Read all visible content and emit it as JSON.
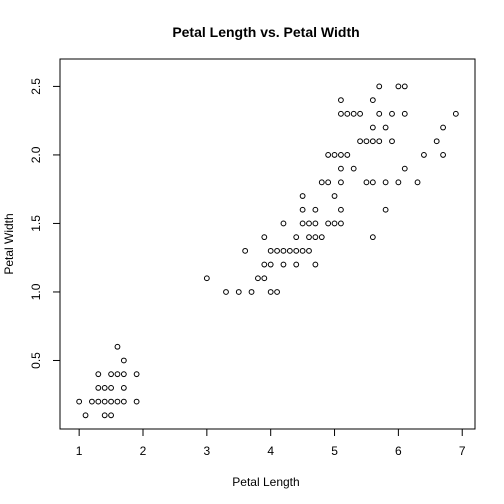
{
  "chart_data": {
    "type": "scatter",
    "title": "Petal Length vs. Petal Width",
    "xlabel": "Petal Length",
    "ylabel": "Petal Width",
    "xlim": [
      0.7,
      7.2
    ],
    "ylim": [
      0.0,
      2.7
    ],
    "x_ticks": [
      1,
      2,
      3,
      4,
      5,
      6,
      7
    ],
    "x_tick_labels": [
      "1",
      "2",
      "3",
      "4",
      "5",
      "6",
      "7"
    ],
    "y_ticks": [
      0.5,
      1.0,
      1.5,
      2.0,
      2.5
    ],
    "y_tick_labels": [
      "0.5",
      "1.0",
      "1.5",
      "2.0",
      "2.5"
    ],
    "grid": false,
    "legend": false,
    "marker": "open-circle",
    "colors": {
      "points": "#000000",
      "axes": "#000000",
      "background": "#ffffff"
    },
    "series": [
      {
        "points": [
          [
            1.0,
            0.2
          ],
          [
            1.1,
            0.1
          ],
          [
            1.2,
            0.2
          ],
          [
            1.3,
            0.2
          ],
          [
            1.3,
            0.3
          ],
          [
            1.3,
            0.4
          ],
          [
            1.4,
            0.1
          ],
          [
            1.4,
            0.2
          ],
          [
            1.4,
            0.3
          ],
          [
            1.5,
            0.1
          ],
          [
            1.5,
            0.2
          ],
          [
            1.5,
            0.3
          ],
          [
            1.5,
            0.4
          ],
          [
            1.6,
            0.2
          ],
          [
            1.6,
            0.4
          ],
          [
            1.6,
            0.6
          ],
          [
            1.7,
            0.2
          ],
          [
            1.7,
            0.3
          ],
          [
            1.7,
            0.4
          ],
          [
            1.7,
            0.5
          ],
          [
            1.9,
            0.2
          ],
          [
            1.9,
            0.4
          ],
          [
            3.0,
            1.1
          ],
          [
            3.3,
            1.0
          ],
          [
            3.5,
            1.0
          ],
          [
            3.6,
            1.3
          ],
          [
            3.7,
            1.0
          ],
          [
            3.8,
            1.1
          ],
          [
            3.9,
            1.1
          ],
          [
            3.9,
            1.2
          ],
          [
            3.9,
            1.4
          ],
          [
            4.0,
            1.0
          ],
          [
            4.0,
            1.2
          ],
          [
            4.0,
            1.3
          ],
          [
            4.1,
            1.0
          ],
          [
            4.1,
            1.3
          ],
          [
            4.2,
            1.2
          ],
          [
            4.2,
            1.3
          ],
          [
            4.2,
            1.5
          ],
          [
            4.3,
            1.3
          ],
          [
            4.4,
            1.2
          ],
          [
            4.4,
            1.3
          ],
          [
            4.4,
            1.4
          ],
          [
            4.5,
            1.3
          ],
          [
            4.5,
            1.5
          ],
          [
            4.5,
            1.6
          ],
          [
            4.5,
            1.7
          ],
          [
            4.6,
            1.3
          ],
          [
            4.6,
            1.4
          ],
          [
            4.6,
            1.5
          ],
          [
            4.7,
            1.2
          ],
          [
            4.7,
            1.4
          ],
          [
            4.7,
            1.5
          ],
          [
            4.7,
            1.6
          ],
          [
            4.8,
            1.4
          ],
          [
            4.8,
            1.8
          ],
          [
            4.9,
            1.5
          ],
          [
            4.9,
            1.8
          ],
          [
            4.9,
            2.0
          ],
          [
            5.0,
            1.5
          ],
          [
            5.0,
            1.7
          ],
          [
            5.0,
            2.0
          ],
          [
            5.1,
            1.5
          ],
          [
            5.1,
            1.6
          ],
          [
            5.1,
            1.8
          ],
          [
            5.1,
            1.9
          ],
          [
            5.1,
            2.0
          ],
          [
            5.1,
            2.3
          ],
          [
            5.1,
            2.4
          ],
          [
            5.2,
            2.0
          ],
          [
            5.2,
            2.3
          ],
          [
            5.3,
            1.9
          ],
          [
            5.3,
            2.3
          ],
          [
            5.4,
            2.1
          ],
          [
            5.4,
            2.3
          ],
          [
            5.5,
            1.8
          ],
          [
            5.5,
            2.1
          ],
          [
            5.6,
            1.4
          ],
          [
            5.6,
            1.8
          ],
          [
            5.6,
            2.1
          ],
          [
            5.6,
            2.2
          ],
          [
            5.6,
            2.4
          ],
          [
            5.7,
            2.1
          ],
          [
            5.7,
            2.3
          ],
          [
            5.7,
            2.5
          ],
          [
            5.8,
            1.6
          ],
          [
            5.8,
            1.8
          ],
          [
            5.8,
            2.2
          ],
          [
            5.9,
            2.1
          ],
          [
            5.9,
            2.3
          ],
          [
            6.0,
            1.8
          ],
          [
            6.0,
            2.5
          ],
          [
            6.1,
            1.9
          ],
          [
            6.1,
            2.3
          ],
          [
            6.1,
            2.5
          ],
          [
            6.3,
            1.8
          ],
          [
            6.4,
            2.0
          ],
          [
            6.6,
            2.1
          ],
          [
            6.7,
            2.0
          ],
          [
            6.7,
            2.2
          ],
          [
            6.9,
            2.3
          ]
        ]
      }
    ]
  }
}
